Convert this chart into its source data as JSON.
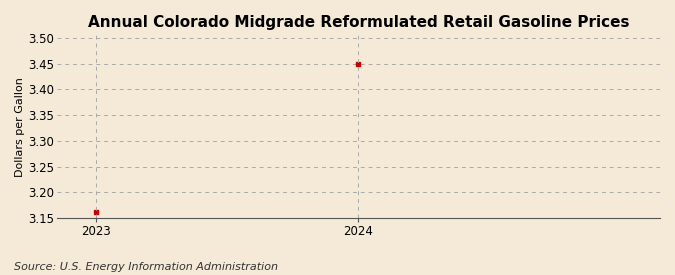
{
  "title": "Annual Colorado Midgrade Reformulated Retail Gasoline Prices",
  "xlabel": "",
  "ylabel": "Dollars per Gallon",
  "source": "Source: U.S. Energy Information Administration",
  "x": [
    2023,
    2024
  ],
  "y": [
    3.162,
    3.449
  ],
  "ylim": [
    3.15,
    3.505
  ],
  "yticks": [
    3.15,
    3.2,
    3.25,
    3.3,
    3.35,
    3.4,
    3.45,
    3.5
  ],
  "xlim": [
    2022.85,
    2025.15
  ],
  "xticks": [
    2023,
    2024
  ],
  "marker_color": "#cc0000",
  "marker": "s",
  "marker_size": 3.5,
  "grid_color": "#aaaaaa",
  "background_color": "#f5ead8",
  "title_fontsize": 11,
  "axis_fontsize": 8,
  "tick_fontsize": 8.5,
  "source_fontsize": 8
}
